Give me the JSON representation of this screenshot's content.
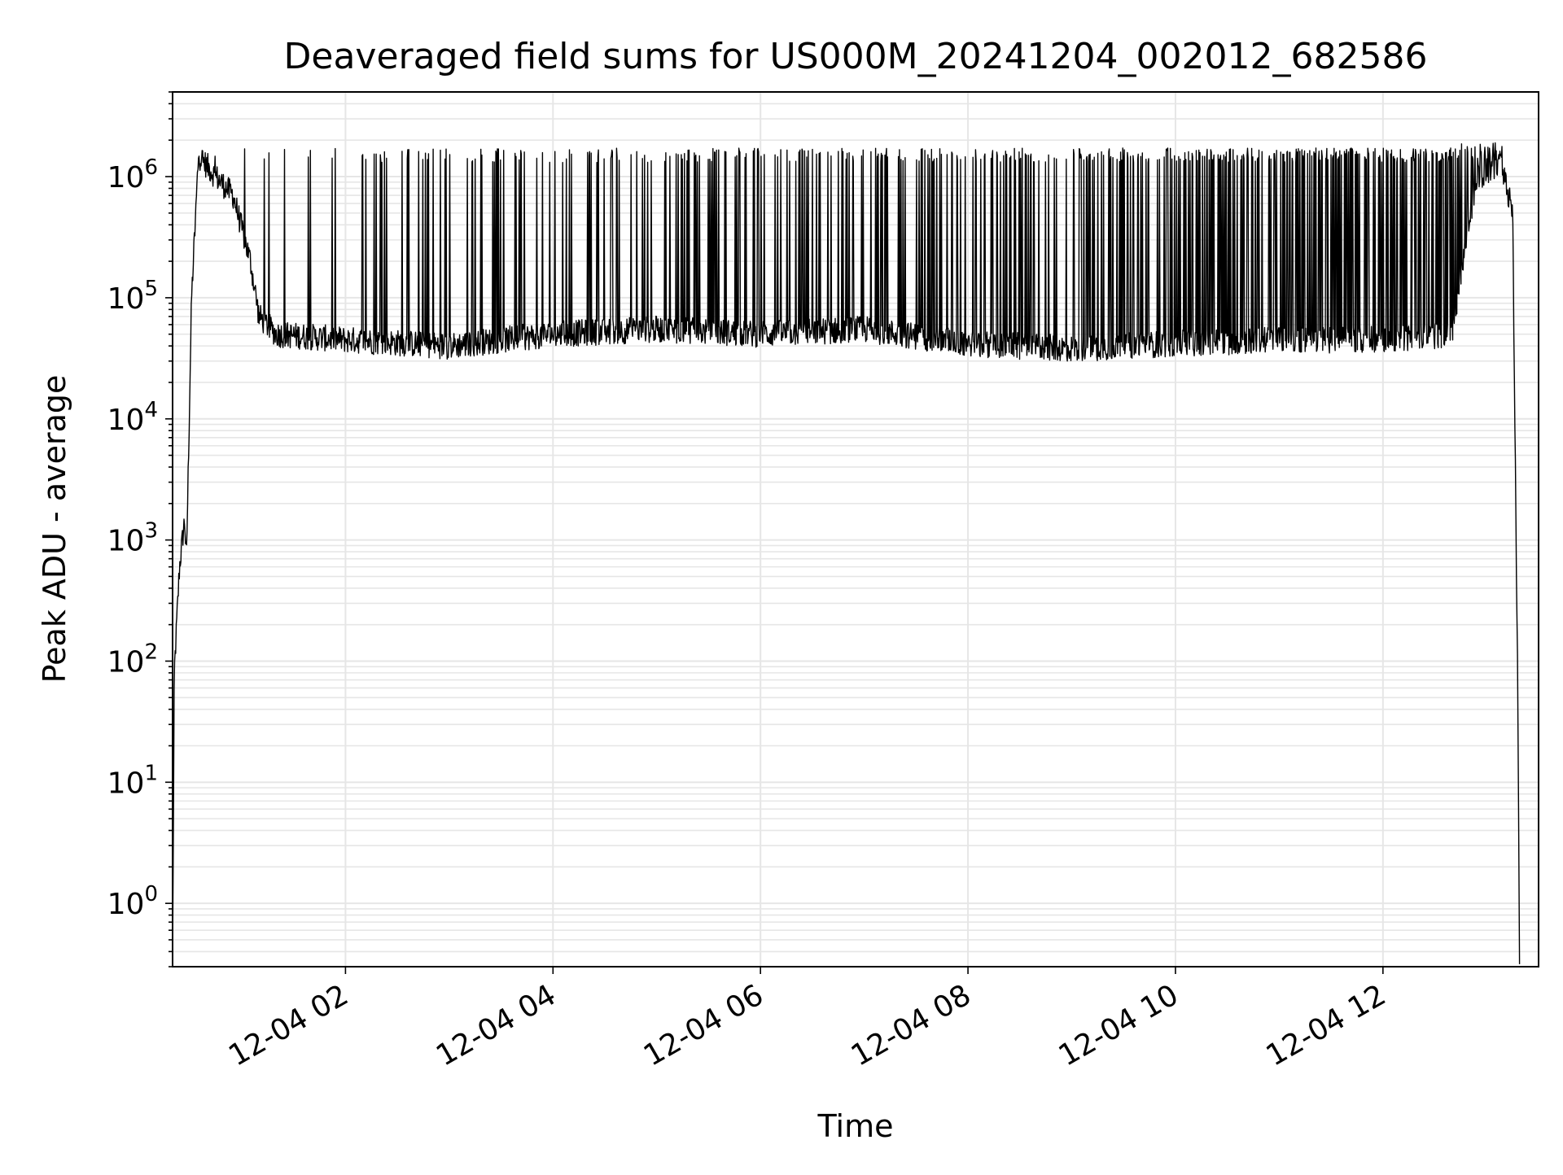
{
  "chart_data": {
    "type": "line",
    "title": "Deaveraged field sums for US000M_20241204_002012_682586",
    "xlabel": "Time",
    "ylabel": "Peak ADU - average",
    "x_scale": "time",
    "y_scale": "log",
    "xlim": [
      "2024-12-04 00:20",
      "2024-12-04 13:30"
    ],
    "ylim": [
      0.3,
      5000000
    ],
    "grid": true,
    "legend": "none",
    "line_color": "#000000",
    "grid_color": "#e6e6e6",
    "x_ticks": [
      {
        "label": "12-04 02",
        "t": "2024-12-04 02:00"
      },
      {
        "label": "12-04 04",
        "t": "2024-12-04 04:00"
      },
      {
        "label": "12-04 06",
        "t": "2024-12-04 06:00"
      },
      {
        "label": "12-04 08",
        "t": "2024-12-04 08:00"
      },
      {
        "label": "12-04 10",
        "t": "2024-12-04 10:00"
      },
      {
        "label": "12-04 12",
        "t": "2024-12-04 12:00"
      }
    ],
    "y_ticks": [
      {
        "base": "10",
        "exp": "0",
        "value": 1
      },
      {
        "base": "10",
        "exp": "1",
        "value": 10
      },
      {
        "base": "10",
        "exp": "2",
        "value": 100
      },
      {
        "base": "10",
        "exp": "3",
        "value": 1000
      },
      {
        "base": "10",
        "exp": "4",
        "value": 10000
      },
      {
        "base": "10",
        "exp": "5",
        "value": 100000
      },
      {
        "base": "10",
        "exp": "6",
        "value": 1000000
      }
    ],
    "series": [
      {
        "points": [
          {
            "t": "2024-12-04 00:20",
            "y": 0.3
          },
          {
            "t": "2024-12-04 00:21",
            "y": 80
          },
          {
            "t": "2024-12-04 00:24",
            "y": 600
          },
          {
            "t": "2024-12-04 00:27",
            "y": 1500
          },
          {
            "t": "2024-12-04 00:28",
            "y": 650
          },
          {
            "t": "2024-12-04 00:31",
            "y": 100000
          },
          {
            "t": "2024-12-04 00:35",
            "y": 1500000
          },
          {
            "t": "2024-12-04 00:45",
            "y": 1000000
          },
          {
            "t": "2024-12-04 00:55",
            "y": 700000
          },
          {
            "t": "2024-12-04 01:05",
            "y": 200000
          },
          {
            "t": "2024-12-04 01:10",
            "y": 70000
          },
          {
            "t": "2024-12-04 01:20",
            "y": 50000
          },
          {
            "t": "2024-12-04 02:00",
            "y": 45000
          },
          {
            "t": "2024-12-04 03:00",
            "y": 40000
          },
          {
            "t": "2024-12-04 04:00",
            "y": 50000
          },
          {
            "t": "2024-12-04 05:00",
            "y": 55000
          },
          {
            "t": "2024-12-04 06:00",
            "y": 50000
          },
          {
            "t": "2024-12-04 07:00",
            "y": 55000
          },
          {
            "t": "2024-12-04 08:00",
            "y": 42000
          },
          {
            "t": "2024-12-04 09:00",
            "y": 38000
          },
          {
            "t": "2024-12-04 10:00",
            "y": 42000
          },
          {
            "t": "2024-12-04 11:00",
            "y": 45000
          },
          {
            "t": "2024-12-04 12:00",
            "y": 45000
          },
          {
            "t": "2024-12-04 12:40",
            "y": 50000
          },
          {
            "t": "2024-12-04 12:48",
            "y": 300000
          },
          {
            "t": "2024-12-04 12:55",
            "y": 1000000
          },
          {
            "t": "2024-12-04 13:08",
            "y": 1300000
          },
          {
            "t": "2024-12-04 13:15",
            "y": 500000
          },
          {
            "t": "2024-12-04 13:18",
            "y": 50
          },
          {
            "t": "2024-12-04 13:19",
            "y": 0.3
          }
        ],
        "noise_band_top": 1500000
      }
    ]
  }
}
